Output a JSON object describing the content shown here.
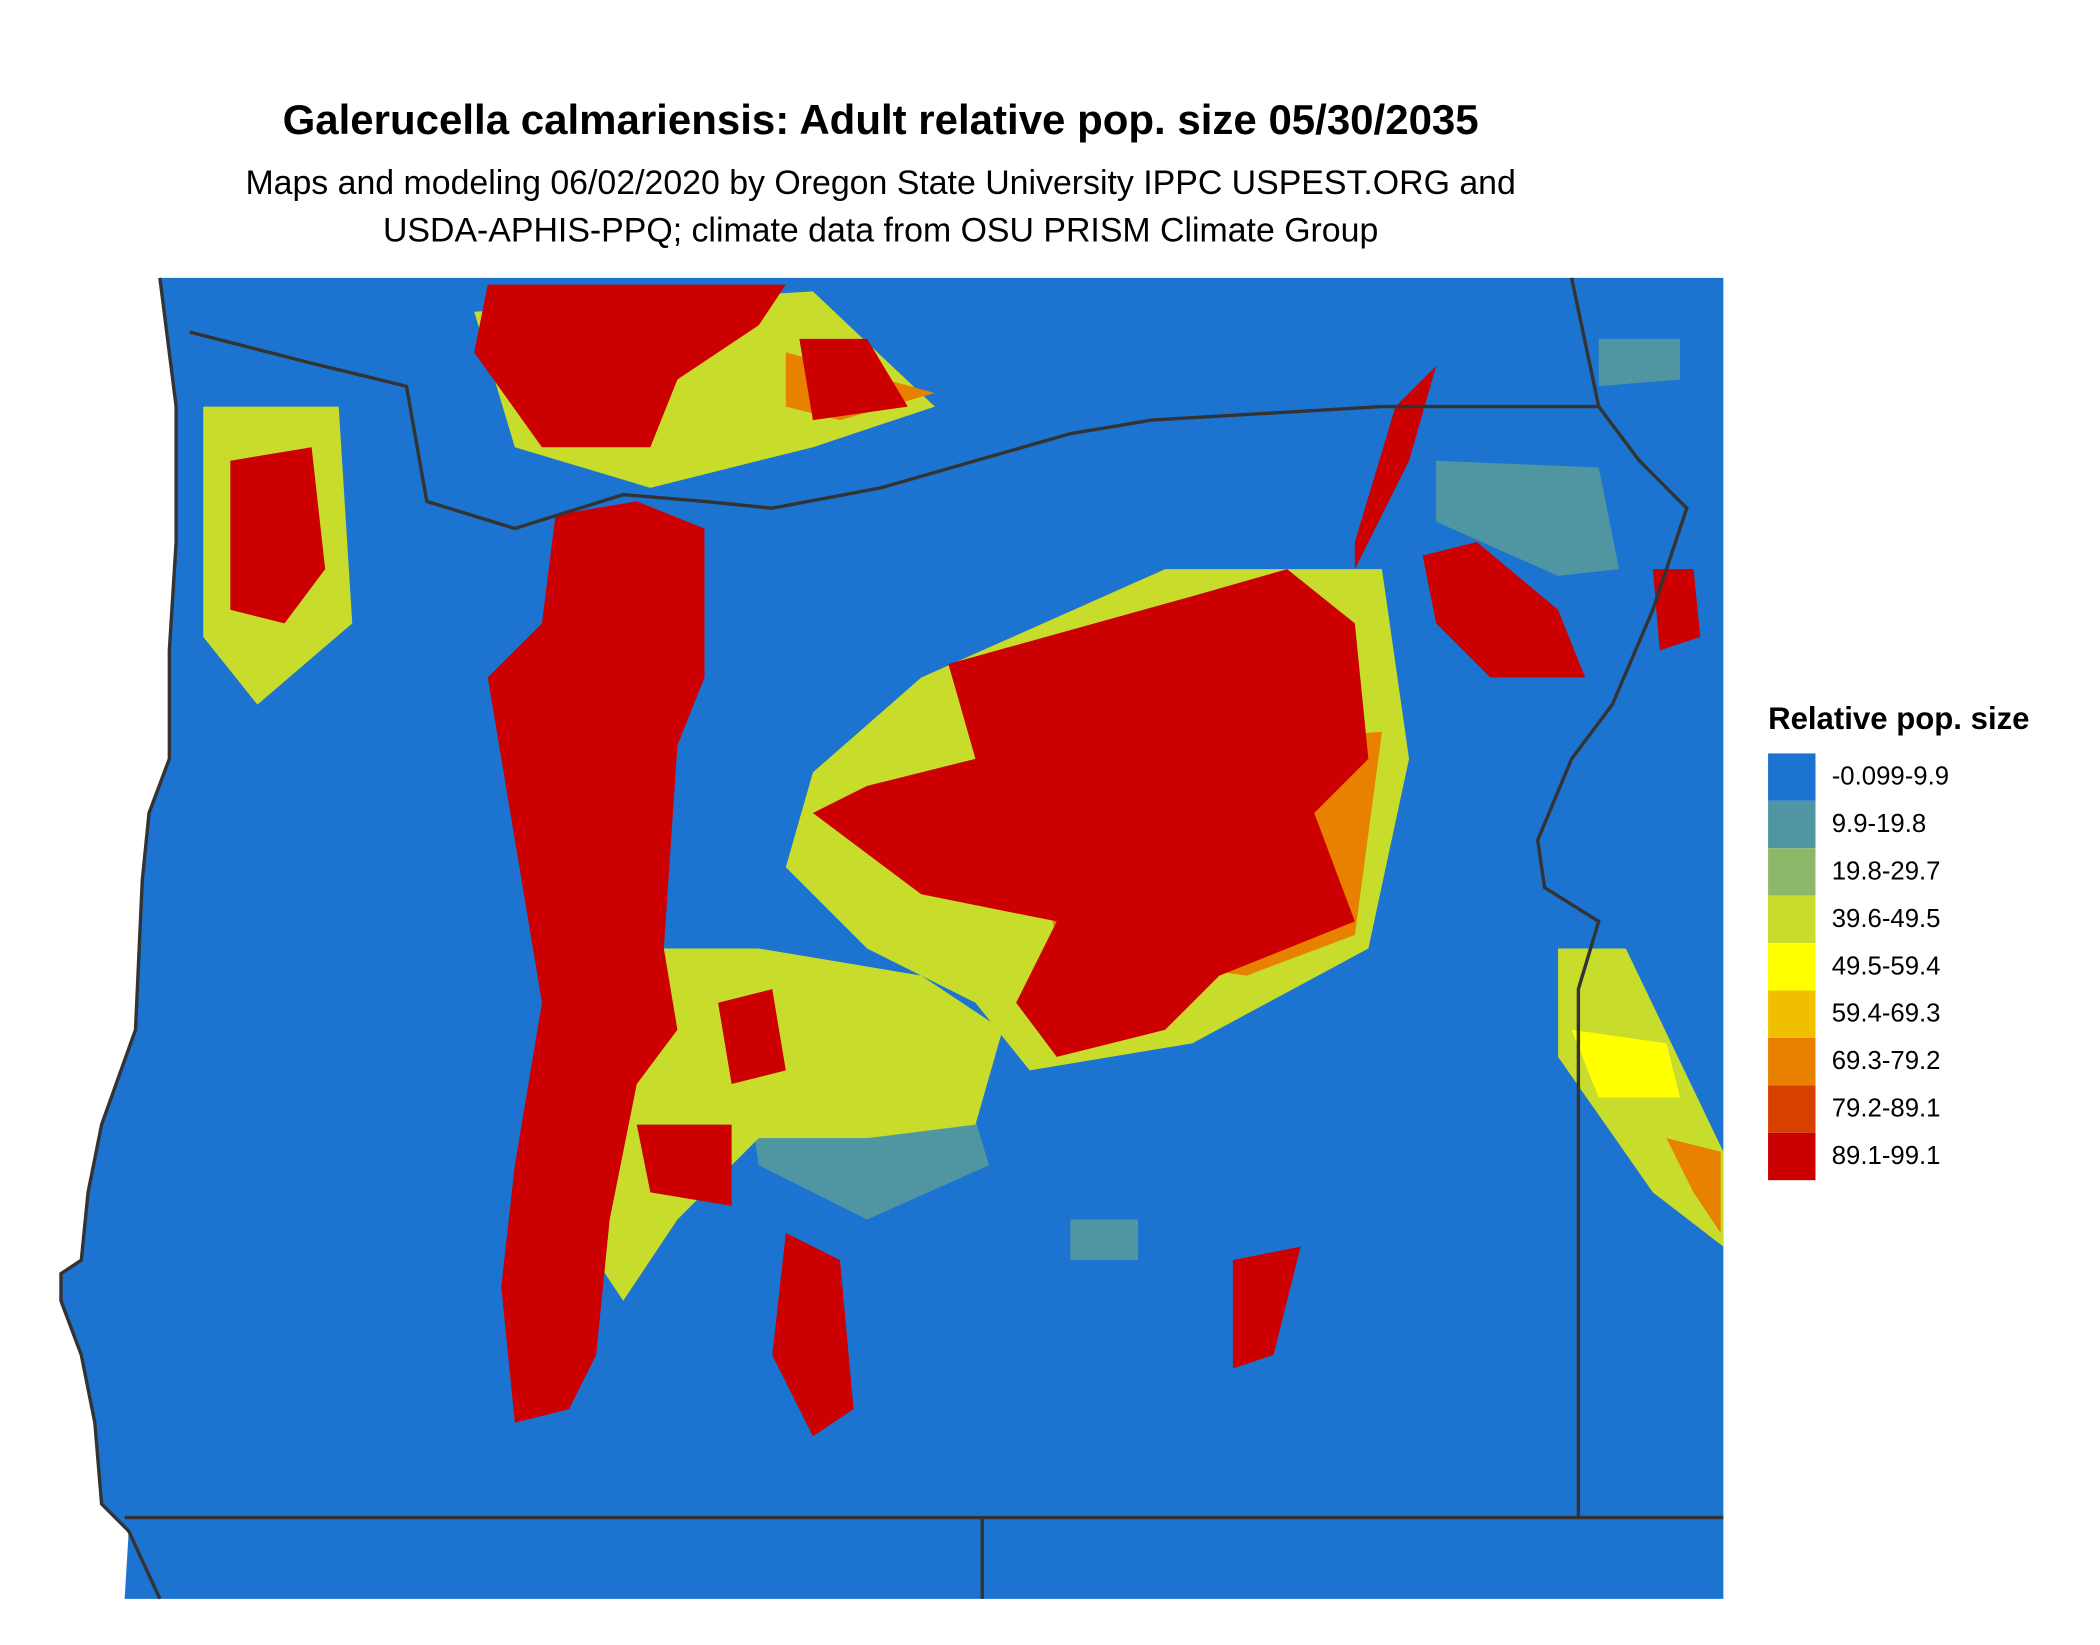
{
  "title": "Galerucella calmariensis: Adult relative pop. size 05/30/2035",
  "subtitle": [
    "Maps and modeling 06/02/2020 by Oregon State University IPPC USPEST.ORG and",
    "USDA-APHIS-PPQ; climate data from OSU PRISM Climate Group"
  ],
  "legend": {
    "title": "Relative pop. size",
    "items": [
      {
        "label": "-0.099-9.9",
        "color": "#1c74d0"
      },
      {
        "label": "9.9-19.8",
        "color": "#4f96a2"
      },
      {
        "label": "19.8-29.7",
        "color": "#8db86a"
      },
      {
        "label": "39.6-49.5",
        "color": "#c8dc2c"
      },
      {
        "label": "49.5-59.4",
        "color": "#ffff00"
      },
      {
        "label": "59.4-69.3",
        "color": "#f0c000"
      },
      {
        "label": "69.3-79.2",
        "color": "#e88000"
      },
      {
        "label": "79.2-89.1",
        "color": "#d84000"
      },
      {
        "label": "89.1-99.1",
        "color": "#cc0000"
      }
    ]
  }
}
